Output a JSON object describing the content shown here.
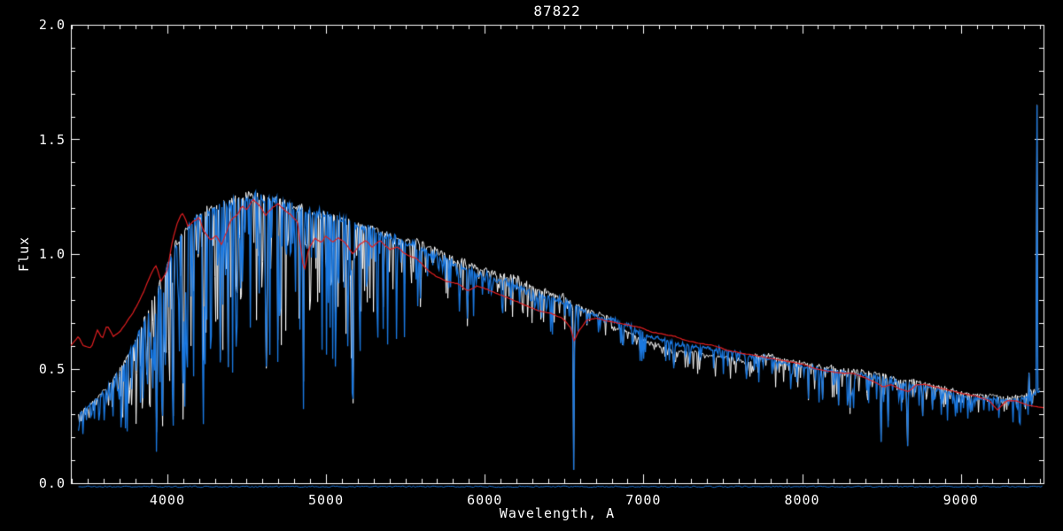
{
  "chart_data": {
    "type": "line",
    "title": "87822",
    "xlabel": "Wavelength, A",
    "ylabel": "Flux",
    "xlim": [
      3392,
      9521
    ],
    "ylim": [
      0.0,
      2.0
    ],
    "x_major_ticks": [
      4000,
      5000,
      6000,
      7000,
      8000,
      9000
    ],
    "x_tick_labels": [
      "4000",
      "5000",
      "6000",
      "7000",
      "8000",
      "9000"
    ],
    "x_minor_step": 100,
    "y_major_ticks": [
      0.0,
      0.5,
      1.0,
      1.5,
      2.0
    ],
    "y_tick_labels": [
      "0.0",
      "0.5",
      "1.0",
      "1.5",
      "2.0"
    ],
    "y_minor_step": 0.1,
    "legend": "none",
    "grid": false,
    "colors": {
      "background": "#000000",
      "axis": "#ffffff",
      "observed": "#1a78e0",
      "overlay": "#ffffff",
      "template": "#e01e20"
    },
    "series_roles": [
      {
        "name": "observed-spectrum",
        "color": "#1a78e0",
        "style": "noisy"
      },
      {
        "name": "comparison-spectrum",
        "color": "#ffffff",
        "style": "noisy-overlay"
      },
      {
        "name": "template-fit",
        "color": "#e01e20",
        "style": "smooth"
      },
      {
        "name": "sky-zero-line",
        "color": "#1a78e0",
        "style": "flat"
      }
    ],
    "observed_x_range": [
      3440,
      9497
    ],
    "observed_continuum": [
      [
        3440,
        0.3
      ],
      [
        3500,
        0.33
      ],
      [
        3550,
        0.36
      ],
      [
        3600,
        0.4
      ],
      [
        3650,
        0.44
      ],
      [
        3700,
        0.49
      ],
      [
        3750,
        0.55
      ],
      [
        3800,
        0.62
      ],
      [
        3850,
        0.7
      ],
      [
        3900,
        0.78
      ],
      [
        3950,
        0.86
      ],
      [
        4000,
        0.95
      ],
      [
        4050,
        1.03
      ],
      [
        4100,
        1.08
      ],
      [
        4150,
        1.13
      ],
      [
        4200,
        1.16
      ],
      [
        4250,
        1.18
      ],
      [
        4300,
        1.2
      ],
      [
        4350,
        1.21
      ],
      [
        4400,
        1.22
      ],
      [
        4500,
        1.25
      ],
      [
        4600,
        1.24
      ],
      [
        4700,
        1.23
      ],
      [
        4800,
        1.2
      ],
      [
        4900,
        1.18
      ],
      [
        5000,
        1.17
      ],
      [
        5100,
        1.15
      ],
      [
        5200,
        1.12
      ],
      [
        5300,
        1.11
      ],
      [
        5400,
        1.07
      ],
      [
        5500,
        1.05
      ],
      [
        5600,
        1.02
      ],
      [
        5700,
        0.99
      ],
      [
        5800,
        0.96
      ],
      [
        5900,
        0.93
      ],
      [
        6000,
        0.9
      ],
      [
        6100,
        0.88
      ],
      [
        6200,
        0.86
      ],
      [
        6300,
        0.83
      ],
      [
        6400,
        0.81
      ],
      [
        6500,
        0.79
      ],
      [
        6600,
        0.76
      ],
      [
        6700,
        0.73
      ],
      [
        6800,
        0.71
      ],
      [
        6900,
        0.69
      ],
      [
        7000,
        0.65
      ],
      [
        7100,
        0.63
      ],
      [
        7200,
        0.61
      ],
      [
        7300,
        0.6
      ],
      [
        7400,
        0.59
      ],
      [
        7500,
        0.58
      ],
      [
        7600,
        0.57
      ],
      [
        7700,
        0.55
      ],
      [
        7800,
        0.54
      ],
      [
        7900,
        0.52
      ],
      [
        8000,
        0.51
      ],
      [
        8100,
        0.5
      ],
      [
        8200,
        0.49
      ],
      [
        8300,
        0.48
      ],
      [
        8400,
        0.47
      ],
      [
        8500,
        0.46
      ],
      [
        8600,
        0.44
      ],
      [
        8700,
        0.43
      ],
      [
        8800,
        0.42
      ],
      [
        8900,
        0.4
      ],
      [
        9000,
        0.38
      ],
      [
        9100,
        0.37
      ],
      [
        9200,
        0.37
      ],
      [
        9300,
        0.36
      ],
      [
        9400,
        0.37
      ],
      [
        9497,
        0.4
      ]
    ],
    "template_continuum": [
      [
        3392,
        0.6
      ],
      [
        3440,
        0.64
      ],
      [
        3470,
        0.6
      ],
      [
        3520,
        0.59
      ],
      [
        3560,
        0.67
      ],
      [
        3590,
        0.63
      ],
      [
        3620,
        0.69
      ],
      [
        3660,
        0.64
      ],
      [
        3700,
        0.66
      ],
      [
        3740,
        0.7
      ],
      [
        3780,
        0.74
      ],
      [
        3820,
        0.79
      ],
      [
        3860,
        0.85
      ],
      [
        3900,
        0.92
      ],
      [
        3930,
        0.95
      ],
      [
        3960,
        0.88
      ],
      [
        4000,
        0.93
      ],
      [
        4030,
        1.05
      ],
      [
        4060,
        1.13
      ],
      [
        4090,
        1.18
      ],
      [
        4110,
        1.16
      ],
      [
        4130,
        1.12
      ],
      [
        4160,
        1.14
      ],
      [
        4200,
        1.16
      ],
      [
        4230,
        1.1
      ],
      [
        4270,
        1.06
      ],
      [
        4310,
        1.08
      ],
      [
        4340,
        1.04
      ],
      [
        4370,
        1.09
      ],
      [
        4400,
        1.15
      ],
      [
        4440,
        1.17
      ],
      [
        4470,
        1.21
      ],
      [
        4500,
        1.19
      ],
      [
        4540,
        1.24
      ],
      [
        4580,
        1.21
      ],
      [
        4620,
        1.17
      ],
      [
        4660,
        1.2
      ],
      [
        4700,
        1.22
      ],
      [
        4740,
        1.19
      ],
      [
        4780,
        1.17
      ],
      [
        4820,
        1.14
      ],
      [
        4861,
        0.92
      ],
      [
        4890,
        1.02
      ],
      [
        4930,
        1.07
      ],
      [
        4970,
        1.05
      ],
      [
        5000,
        1.08
      ],
      [
        5040,
        1.05
      ],
      [
        5080,
        1.07
      ],
      [
        5120,
        1.05
      ],
      [
        5170,
        1.0
      ],
      [
        5210,
        1.04
      ],
      [
        5250,
        1.06
      ],
      [
        5290,
        1.03
      ],
      [
        5340,
        1.06
      ],
      [
        5400,
        1.02
      ],
      [
        5450,
        1.03
      ],
      [
        5500,
        1.0
      ],
      [
        5570,
        0.98
      ],
      [
        5640,
        0.93
      ],
      [
        5700,
        0.9
      ],
      [
        5760,
        0.88
      ],
      [
        5830,
        0.87
      ],
      [
        5892,
        0.84
      ],
      [
        5950,
        0.86
      ],
      [
        6000,
        0.85
      ],
      [
        6070,
        0.83
      ],
      [
        6140,
        0.81
      ],
      [
        6210,
        0.79
      ],
      [
        6280,
        0.77
      ],
      [
        6350,
        0.75
      ],
      [
        6420,
        0.74
      ],
      [
        6490,
        0.72
      ],
      [
        6540,
        0.68
      ],
      [
        6563,
        0.62
      ],
      [
        6590,
        0.66
      ],
      [
        6640,
        0.71
      ],
      [
        6700,
        0.72
      ],
      [
        6760,
        0.71
      ],
      [
        6830,
        0.7
      ],
      [
        6900,
        0.69
      ],
      [
        6980,
        0.68
      ],
      [
        7050,
        0.66
      ],
      [
        7130,
        0.65
      ],
      [
        7200,
        0.64
      ],
      [
        7280,
        0.62
      ],
      [
        7360,
        0.61
      ],
      [
        7450,
        0.6
      ],
      [
        7530,
        0.58
      ],
      [
        7600,
        0.57
      ],
      [
        7680,
        0.56
      ],
      [
        7760,
        0.55
      ],
      [
        7840,
        0.54
      ],
      [
        7920,
        0.53
      ],
      [
        8000,
        0.52
      ],
      [
        8080,
        0.5
      ],
      [
        8160,
        0.49
      ],
      [
        8240,
        0.48
      ],
      [
        8320,
        0.48
      ],
      [
        8400,
        0.46
      ],
      [
        8460,
        0.44
      ],
      [
        8510,
        0.42
      ],
      [
        8560,
        0.43
      ],
      [
        8620,
        0.41
      ],
      [
        8670,
        0.4
      ],
      [
        8720,
        0.43
      ],
      [
        8780,
        0.43
      ],
      [
        8840,
        0.42
      ],
      [
        8900,
        0.41
      ],
      [
        8960,
        0.4
      ],
      [
        9020,
        0.39
      ],
      [
        9100,
        0.38
      ],
      [
        9180,
        0.36
      ],
      [
        9230,
        0.32
      ],
      [
        9290,
        0.36
      ],
      [
        9350,
        0.36
      ],
      [
        9420,
        0.34
      ],
      [
        9520,
        0.33
      ]
    ],
    "absorption_lines": [
      [
        3933,
        0.14,
        5
      ],
      [
        3968,
        0.16,
        5
      ],
      [
        4039,
        0.12,
        3
      ],
      [
        4101,
        0.35,
        4
      ],
      [
        4226,
        0.45,
        3
      ],
      [
        4335,
        0.21,
        3
      ],
      [
        4383,
        0.5,
        3
      ],
      [
        4625,
        0.12,
        2.5
      ],
      [
        4859,
        0.4,
        3
      ],
      [
        5170,
        0.68,
        5
      ],
      [
        5892,
        0.68,
        4
      ],
      [
        6561,
        0.03,
        3.5
      ],
      [
        6870,
        0.58,
        5
      ],
      [
        7190,
        0.5,
        4
      ],
      [
        7650,
        0.46,
        6
      ],
      [
        8040,
        0.36,
        3
      ],
      [
        8130,
        0.34,
        3
      ],
      [
        8230,
        0.33,
        3
      ],
      [
        8303,
        0.31,
        3
      ],
      [
        8498,
        0.17,
        4
      ],
      [
        8542,
        0.28,
        4
      ],
      [
        8665,
        0.16,
        4
      ],
      [
        8760,
        0.29,
        3
      ],
      [
        8820,
        0.31,
        3
      ],
      [
        9060,
        0.3,
        3
      ]
    ],
    "emission_spikes": [
      [
        9480,
        1.69,
        2
      ],
      [
        9455,
        0.62,
        1.5
      ],
      [
        9430,
        0.55,
        1.5
      ],
      [
        9350,
        0.5,
        1.5
      ]
    ],
    "white_offsets": [
      [
        5500,
        6500,
        0.025
      ],
      [
        6500,
        6800,
        0.01
      ],
      [
        6800,
        7700,
        -0.03
      ],
      [
        7700,
        9520,
        0.015
      ]
    ],
    "noise": {
      "base": 0.02,
      "spike_regions": [
        [
          3440,
          3700,
          0.4,
          0.35
        ],
        [
          3700,
          4150,
          0.45,
          0.7
        ],
        [
          4150,
          5300,
          0.4,
          0.62
        ],
        [
          5300,
          5600,
          0.3,
          0.45
        ],
        [
          5600,
          6600,
          0.18,
          0.22
        ],
        [
          6600,
          7700,
          0.16,
          0.2
        ],
        [
          7700,
          9000,
          0.22,
          0.32
        ],
        [
          9000,
          9497,
          0.25,
          0.3
        ]
      ]
    },
    "sky_level": -0.015
  }
}
